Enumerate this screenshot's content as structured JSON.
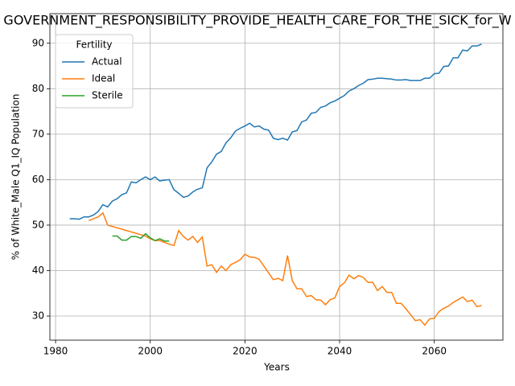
{
  "chart_data": {
    "type": "line",
    "title": "GOVERNMENT_RESPONSIBILITY_PROVIDE_HEALTH_CARE_FOR_THE_SICK_for_W",
    "x_label": "Years",
    "y_label": "% of White_Male Q1_IQ Population",
    "xlim": [
      1978.8,
      2074.5
    ],
    "ylim": [
      24.7,
      96.5
    ],
    "xticks": [
      1980,
      2000,
      2020,
      2040,
      2060
    ],
    "yticks": [
      30,
      40,
      50,
      60,
      70,
      80,
      90
    ],
    "grid": true,
    "legend_title": "Fertility",
    "legend_loc": "upper left",
    "series": [
      {
        "name": "Actual",
        "color": "#1f77b4",
        "x": [
          1983,
          1984,
          1985,
          1986,
          1987,
          1988,
          1989,
          1990,
          1991,
          1992,
          1993,
          1994,
          1995,
          1996,
          1997,
          1998,
          1999,
          2000,
          2001,
          2002,
          2003,
          2004,
          2005,
          2006,
          2007,
          2008,
          2009,
          2010,
          2011,
          2012,
          2013,
          2014,
          2015,
          2016,
          2017,
          2018,
          2019,
          2020,
          2021,
          2022,
          2023,
          2024,
          2025,
          2026,
          2027,
          2028,
          2029,
          2030,
          2031,
          2032,
          2033,
          2034,
          2035,
          2036,
          2037,
          2038,
          2039,
          2040,
          2041,
          2042,
          2043,
          2044,
          2045,
          2046,
          2047,
          2048,
          2049,
          2050,
          2051,
          2052,
          2053,
          2054,
          2055,
          2056,
          2057,
          2058,
          2059,
          2060,
          2061,
          2062,
          2063,
          2064,
          2065,
          2066,
          2067,
          2068,
          2069,
          2070
        ],
        "values": [
          51.4,
          51.4,
          51.3,
          51.8,
          51.8,
          52.2,
          53.0,
          54.5,
          54.0,
          55.3,
          55.8,
          56.7,
          57.1,
          59.5,
          59.3,
          60.0,
          60.6,
          60.0,
          60.6,
          59.7,
          59.9,
          60.0,
          57.8,
          57.0,
          56.1,
          56.4,
          57.3,
          57.9,
          58.2,
          62.6,
          63.9,
          65.6,
          66.2,
          68.1,
          69.2,
          70.7,
          71.3,
          71.8,
          72.4,
          71.6,
          71.8,
          71.1,
          70.9,
          69.1,
          68.8,
          69.1,
          68.7,
          70.5,
          70.8,
          72.7,
          73.1,
          74.6,
          74.8,
          75.9,
          76.2,
          76.9,
          77.3,
          77.9,
          78.5,
          79.5,
          80.0,
          80.7,
          81.2,
          82.0,
          82.1,
          82.3,
          82.3,
          82.2,
          82.1,
          81.9,
          81.9,
          82.0,
          81.8,
          81.8,
          81.8,
          82.3,
          82.3,
          83.3,
          83.4,
          84.9,
          85.0,
          86.8,
          86.8,
          88.5,
          88.3,
          89.4,
          89.4,
          89.8
        ]
      },
      {
        "name": "Ideal",
        "color": "#ff7f0e",
        "x": [
          1987,
          1988,
          1989,
          1990,
          1991,
          1992,
          1993,
          1994,
          1995,
          1996,
          1997,
          1998,
          1999,
          2000,
          2001,
          2002,
          2003,
          2004,
          2005,
          2006,
          2007,
          2008,
          2009,
          2010,
          2011,
          2012,
          2013,
          2014,
          2015,
          2016,
          2017,
          2018,
          2019,
          2020,
          2021,
          2022,
          2023,
          2024,
          2025,
          2026,
          2027,
          2028,
          2029,
          2030,
          2031,
          2032,
          2033,
          2034,
          2035,
          2036,
          2037,
          2038,
          2039,
          2040,
          2041,
          2042,
          2043,
          2044,
          2045,
          2046,
          2047,
          2048,
          2049,
          2050,
          2051,
          2052,
          2053,
          2054,
          2055,
          2056,
          2057,
          2058,
          2059,
          2060,
          2061,
          2062,
          2063,
          2064,
          2065,
          2066,
          2067,
          2068,
          2069,
          2070
        ],
        "values": [
          51.0,
          51.4,
          51.8,
          52.7,
          50.0,
          49.7,
          49.4,
          49.1,
          48.8,
          48.5,
          48.2,
          47.9,
          47.6,
          47.0,
          46.6,
          46.6,
          46.2,
          45.8,
          45.5,
          48.8,
          47.5,
          46.7,
          47.5,
          46.2,
          47.4,
          41.0,
          41.3,
          39.6,
          41.0,
          40.0,
          41.3,
          41.8,
          42.4,
          43.6,
          43.0,
          42.9,
          42.5,
          41.0,
          39.5,
          38.0,
          38.3,
          37.8,
          43.3,
          37.8,
          36.0,
          36.0,
          34.3,
          34.5,
          33.6,
          33.5,
          32.5,
          33.6,
          34.0,
          36.5,
          37.3,
          39.0,
          38.2,
          38.9,
          38.5,
          37.4,
          37.4,
          35.6,
          36.5,
          35.2,
          35.2,
          32.8,
          32.8,
          31.6,
          30.3,
          29.0,
          29.2,
          28.0,
          29.4,
          29.5,
          31.0,
          31.7,
          32.2,
          33.0,
          33.6,
          34.2,
          33.2,
          33.5,
          32.1,
          32.3
        ]
      },
      {
        "name": "Sterile",
        "color": "#2ca02c",
        "x": [
          1992,
          1993,
          1994,
          1995,
          1996,
          1997,
          1998,
          1999,
          2000,
          2001,
          2002,
          2003,
          2004
        ],
        "values": [
          47.6,
          47.6,
          46.7,
          46.7,
          47.5,
          47.5,
          47.1,
          48.1,
          47.2,
          46.6,
          47.0,
          46.5,
          46.5
        ]
      }
    ]
  }
}
